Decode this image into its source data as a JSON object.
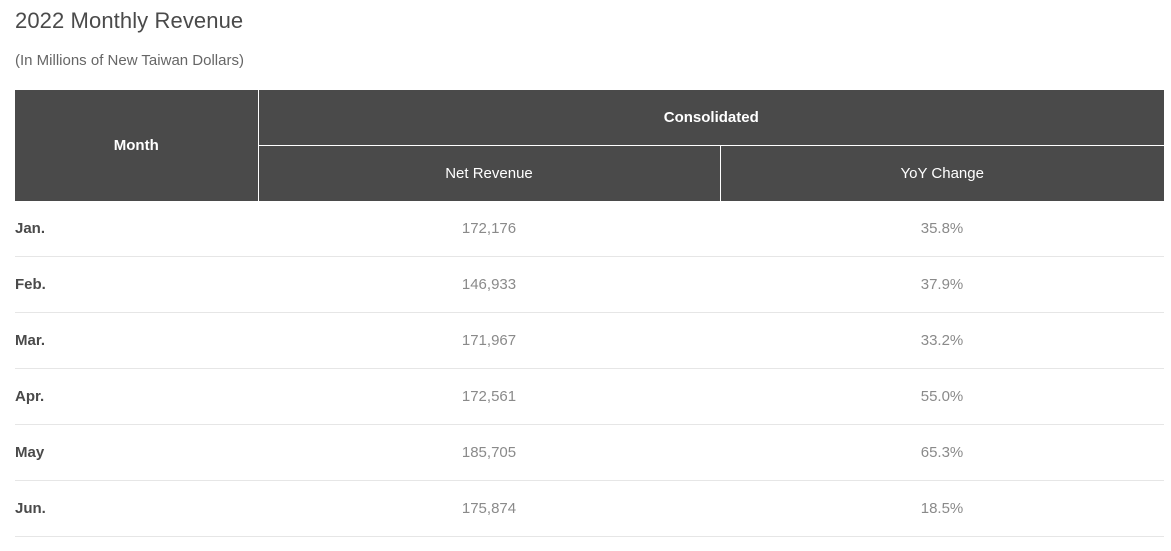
{
  "title": "2022 Monthly Revenue",
  "subtitle": "(In Millions of New Taiwan Dollars)",
  "table": {
    "headers": {
      "month": "Month",
      "group": "Consolidated",
      "net_revenue": "Net Revenue",
      "yoy_change": "YoY Change"
    },
    "rows": [
      {
        "month": "Jan.",
        "net_revenue": "172,176",
        "yoy": "35.8%"
      },
      {
        "month": "Feb.",
        "net_revenue": "146,933",
        "yoy": "37.9%"
      },
      {
        "month": "Mar.",
        "net_revenue": "171,967",
        "yoy": "33.2%"
      },
      {
        "month": "Apr.",
        "net_revenue": "172,561",
        "yoy": "55.0%"
      },
      {
        "month": "May",
        "net_revenue": "185,705",
        "yoy": "65.3%"
      },
      {
        "month": "Jun.",
        "net_revenue": "175,874",
        "yoy": "18.5%"
      }
    ]
  },
  "colors": {
    "header_bg": "#4a4a4a",
    "header_text": "#ffffff",
    "value_text": "#8a8a8a",
    "row_divider": "#e6e6e6"
  }
}
